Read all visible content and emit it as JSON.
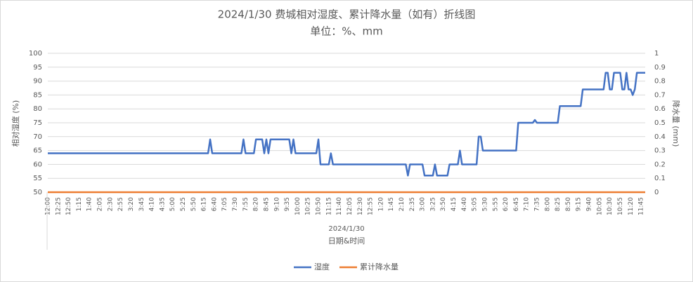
{
  "chart_data": {
    "type": "line",
    "title": "2024/1/30 费城相对湿度、累计降水量（如有）折线图",
    "subtitle": "单位：%、mm",
    "x_group_label": "2024/1/30",
    "x_label": "日期&时间",
    "y_label": "相对湿度 (%)",
    "y2_label": "降水量 (mm)",
    "ylim": [
      50,
      100
    ],
    "yticks": [
      50,
      55,
      60,
      65,
      70,
      75,
      80,
      85,
      90,
      95,
      100
    ],
    "y2lim": [
      0,
      1
    ],
    "y2ticks": [
      0,
      0.1,
      0.2,
      0.3,
      0.4,
      0.5,
      0.6,
      0.7,
      0.8,
      0.9,
      1
    ],
    "grid": true,
    "legend": "bottom",
    "categories": [
      "12:00",
      null,
      null,
      null,
      null,
      "12:25",
      null,
      null,
      null,
      null,
      "12:50",
      null,
      null,
      null,
      null,
      "1:15",
      null,
      null,
      null,
      null,
      "1:40",
      null,
      null,
      null,
      null,
      "2:05",
      null,
      null,
      null,
      null,
      "2:30",
      null,
      null,
      null,
      null,
      "2:55",
      null,
      null,
      null,
      null,
      "3:20",
      null,
      null,
      null,
      null,
      "3:45",
      null,
      null,
      null,
      null,
      "4:10",
      null,
      null,
      null,
      null,
      "4:35",
      null,
      null,
      null,
      null,
      "5:00",
      null,
      null,
      null,
      null,
      "5:25",
      null,
      null,
      null,
      null,
      "5:50",
      null,
      null,
      null,
      null,
      "6:15",
      null,
      null,
      null,
      null,
      "6:40",
      null,
      null,
      null,
      null,
      "7:05",
      null,
      null,
      null,
      null,
      "7:30",
      null,
      null,
      null,
      null,
      "7:55",
      null,
      null,
      null,
      null,
      "8:20",
      null,
      null,
      null,
      null,
      "8:45",
      null,
      null,
      null,
      null,
      "9:10",
      null,
      null,
      null,
      null,
      "9:35",
      null,
      null,
      null,
      null,
      "10:00",
      null,
      null,
      null,
      null,
      "10:25",
      null,
      null,
      null,
      null,
      "10:50",
      null,
      null,
      null,
      null,
      "11:15",
      null,
      null,
      null,
      null,
      "11:40",
      null,
      null,
      null,
      null,
      "12:05",
      null,
      null,
      null,
      null,
      "12:30",
      null,
      null,
      null,
      null,
      "12:55",
      null,
      null,
      null,
      null,
      "1:20",
      null,
      null,
      null,
      null,
      "1:45",
      null,
      null,
      null,
      null,
      "2:10",
      null,
      null,
      null,
      null,
      "2:35",
      null,
      null,
      null,
      null,
      "3:00",
      null,
      null,
      null,
      null,
      "3:25",
      null,
      null,
      null,
      null,
      "3:50",
      null,
      null,
      null,
      null,
      "4:15",
      null,
      null,
      null,
      null,
      "4:40",
      null,
      null,
      null,
      null,
      "5:05",
      null,
      null,
      null,
      null,
      "5:30",
      null,
      null,
      null,
      null,
      "5:55",
      null,
      null,
      null,
      null,
      "6:20",
      null,
      null,
      null,
      null,
      "6:45",
      null,
      null,
      null,
      null,
      "7:10",
      null,
      null,
      null,
      null,
      "7:35",
      null,
      null,
      null,
      null,
      "8:00",
      null,
      null,
      null,
      null,
      "8:25",
      null,
      null,
      null,
      null,
      "8:50",
      null,
      null,
      null,
      null,
      "9:15",
      null,
      null,
      null,
      null,
      "9:40",
      null,
      null,
      null,
      null,
      "10:05",
      null,
      null,
      null,
      null,
      "10:30",
      null,
      null,
      null,
      null,
      "10:55",
      null,
      null,
      null,
      null,
      "11:20",
      null,
      null,
      null,
      null,
      "11:45",
      null,
      null
    ],
    "series": [
      {
        "name": "湿度",
        "color": "#4472c4",
        "values": [
          64,
          64,
          64,
          64,
          64,
          64,
          64,
          64,
          64,
          64,
          64,
          64,
          64,
          64,
          64,
          64,
          64,
          64,
          64,
          64,
          64,
          64,
          64,
          64,
          64,
          64,
          64,
          64,
          64,
          64,
          64,
          64,
          64,
          64,
          64,
          64,
          64,
          64,
          64,
          64,
          64,
          64,
          64,
          64,
          64,
          64,
          64,
          64,
          64,
          64,
          64,
          64,
          64,
          64,
          64,
          64,
          64,
          64,
          64,
          64,
          64,
          64,
          64,
          64,
          64,
          64,
          64,
          64,
          64,
          64,
          64,
          64,
          64,
          64,
          64,
          64,
          64,
          64,
          69,
          64,
          64,
          64,
          64,
          64,
          64,
          64,
          64,
          64,
          64,
          64,
          64,
          64,
          64,
          64,
          69,
          64,
          64,
          64,
          64,
          64,
          69,
          69,
          69,
          69,
          64,
          69,
          64,
          69,
          69,
          69,
          69,
          69,
          69,
          69,
          69,
          69,
          69,
          64,
          69,
          64,
          64,
          64,
          64,
          64,
          64,
          64,
          64,
          64,
          64,
          64,
          69,
          60,
          60,
          60,
          60,
          60,
          64,
          60,
          60,
          60,
          60,
          60,
          60,
          60,
          60,
          60,
          60,
          60,
          60,
          60,
          60,
          60,
          60,
          60,
          60,
          60,
          60,
          60,
          60,
          60,
          60,
          60,
          60,
          60,
          60,
          60,
          60,
          60,
          60,
          60,
          60,
          60,
          60,
          56,
          60,
          60,
          60,
          60,
          60,
          60,
          60,
          56,
          56,
          56,
          56,
          56,
          60,
          56,
          56,
          56,
          56,
          56,
          56,
          60,
          60,
          60,
          60,
          60,
          65,
          60,
          60,
          60,
          60,
          60,
          60,
          60,
          60,
          70,
          70,
          65,
          65,
          65,
          65,
          65,
          65,
          65,
          65,
          65,
          65,
          65,
          65,
          65,
          65,
          65,
          65,
          65,
          75,
          75,
          75,
          75,
          75,
          75,
          75,
          75,
          76,
          75,
          75,
          75,
          75,
          75,
          75,
          75,
          75,
          75,
          75,
          75,
          81,
          81,
          81,
          81,
          81,
          81,
          81,
          81,
          81,
          81,
          81,
          87,
          87,
          87,
          87,
          87,
          87,
          87,
          87,
          87,
          87,
          87,
          93,
          93,
          87,
          87,
          93,
          93,
          93,
          93,
          87,
          87,
          93,
          87,
          87,
          85,
          87,
          93,
          93,
          93,
          93,
          93
        ]
      },
      {
        "name": "累计降水量",
        "color": "#ed7d31",
        "axis": "y2",
        "values": [
          0,
          0,
          0,
          0,
          0,
          0,
          0,
          0,
          0,
          0,
          0,
          0,
          0,
          0,
          0,
          0,
          0,
          0,
          0,
          0,
          0,
          0,
          0,
          0,
          0,
          0,
          0,
          0,
          0,
          0,
          0,
          0,
          0,
          0,
          0,
          0,
          0,
          0,
          0,
          0,
          0,
          0,
          0,
          0,
          0,
          0,
          0,
          0,
          0,
          0,
          0,
          0,
          0,
          0,
          0,
          0,
          0,
          0,
          0,
          0,
          0,
          0,
          0,
          0,
          0,
          0,
          0,
          0,
          0,
          0,
          0,
          0,
          0,
          0,
          0,
          0,
          0,
          0,
          0,
          0,
          0,
          0,
          0,
          0,
          0,
          0,
          0,
          0,
          0,
          0,
          0,
          0,
          0,
          0,
          0,
          0,
          0,
          0,
          0,
          0,
          0,
          0,
          0,
          0,
          0,
          0,
          0,
          0,
          0,
          0,
          0,
          0,
          0,
          0,
          0,
          0,
          0,
          0,
          0,
          0,
          0,
          0,
          0,
          0,
          0,
          0,
          0,
          0,
          0,
          0,
          0,
          0,
          0,
          0,
          0,
          0,
          0,
          0,
          0,
          0,
          0,
          0,
          0,
          0,
          0,
          0,
          0,
          0,
          0,
          0,
          0,
          0,
          0,
          0,
          0,
          0,
          0,
          0,
          0,
          0,
          0,
          0,
          0,
          0,
          0,
          0,
          0,
          0,
          0,
          0,
          0,
          0,
          0,
          0,
          0,
          0,
          0,
          0,
          0,
          0,
          0,
          0,
          0,
          0,
          0,
          0,
          0,
          0,
          0,
          0,
          0,
          0,
          0,
          0,
          0,
          0,
          0,
          0,
          0,
          0,
          0,
          0,
          0,
          0,
          0,
          0,
          0,
          0,
          0,
          0,
          0,
          0,
          0,
          0,
          0,
          0,
          0,
          0,
          0,
          0,
          0,
          0,
          0,
          0,
          0,
          0,
          0,
          0,
          0,
          0,
          0,
          0,
          0,
          0,
          0,
          0,
          0,
          0,
          0,
          0,
          0,
          0,
          0,
          0,
          0,
          0,
          0,
          0,
          0,
          0,
          0,
          0,
          0,
          0,
          0,
          0,
          0,
          0,
          0,
          0,
          0,
          0,
          0,
          0,
          0,
          0,
          0,
          0,
          0,
          0,
          0,
          0,
          0,
          0,
          0,
          0,
          0,
          0,
          0,
          0,
          0,
          0,
          0,
          0,
          0,
          0,
          0,
          0
        ]
      }
    ]
  }
}
